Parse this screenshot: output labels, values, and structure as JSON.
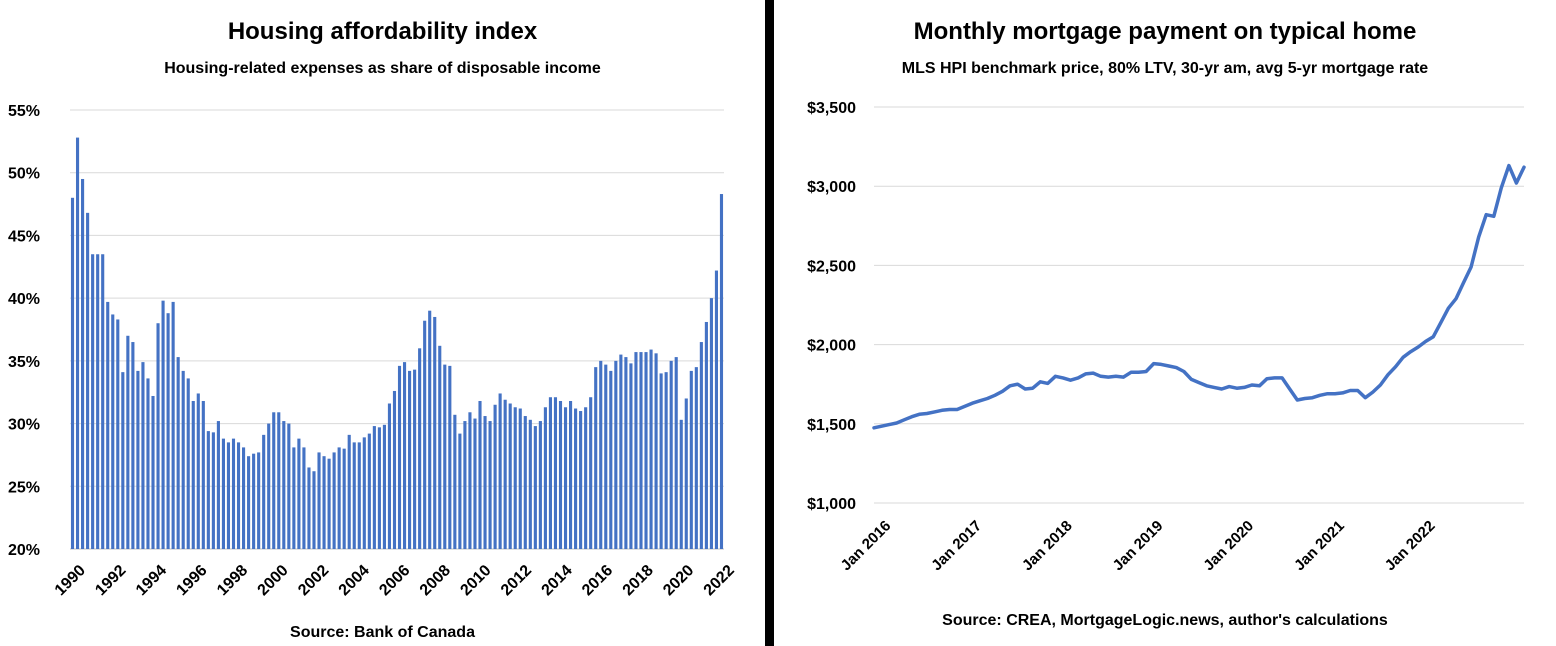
{
  "left_chart": {
    "title": "Housing affordability index",
    "subtitle": "Housing-related expenses as share of disposable income",
    "source": "Source:  Bank of Canada",
    "bar_color": "#4472C4"
  },
  "right_chart": {
    "title": "Monthly mortgage payment on typical home",
    "subtitle": "MLS HPI benchmark price, 80% LTV, 30-yr am,  avg 5-yr mortgage rate",
    "source": "Source: CREA, MortgageLogic.news, author's calculations",
    "line_color": "#4472C4"
  },
  "chart_data": [
    {
      "type": "bar",
      "title": "Housing affordability index",
      "subtitle": "Housing-related expenses as share of disposable income",
      "ylim": [
        20,
        55
      ],
      "y_ticks": [
        "20%",
        "25%",
        "30%",
        "35%",
        "40%",
        "45%",
        "50%",
        "55%"
      ],
      "x_labels": [
        "1990",
        "1992",
        "1994",
        "1996",
        "1998",
        "2000",
        "2002",
        "2004",
        "2006",
        "2008",
        "2010",
        "2012",
        "2014",
        "2016",
        "2018",
        "2020",
        "2022"
      ],
      "x_range": [
        1990,
        2022.25
      ],
      "grid": true,
      "values": [
        48.0,
        52.8,
        49.5,
        46.8,
        43.5,
        43.5,
        43.5,
        39.7,
        38.7,
        38.3,
        34.1,
        37.0,
        36.5,
        34.2,
        34.9,
        33.6,
        32.2,
        38.0,
        39.8,
        38.8,
        39.7,
        35.3,
        34.2,
        33.6,
        31.8,
        32.4,
        31.8,
        29.4,
        29.3,
        30.2,
        28.8,
        28.5,
        28.8,
        28.5,
        28.1,
        27.4,
        27.6,
        27.7,
        29.1,
        30.0,
        30.9,
        30.9,
        30.2,
        30.0,
        28.1,
        28.8,
        28.1,
        26.5,
        26.2,
        27.7,
        27.4,
        27.2,
        27.7,
        28.1,
        28.0,
        29.1,
        28.5,
        28.5,
        28.9,
        29.2,
        29.8,
        29.7,
        29.9,
        31.6,
        32.6,
        34.6,
        34.9,
        34.2,
        34.3,
        36.0,
        38.2,
        39.0,
        38.5,
        36.2,
        34.7,
        34.6,
        30.7,
        29.2,
        30.2,
        30.9,
        30.4,
        31.8,
        30.6,
        30.2,
        31.5,
        32.4,
        31.9,
        31.6,
        31.3,
        31.2,
        30.6,
        30.3,
        29.8,
        30.2,
        31.3,
        32.1,
        32.1,
        31.8,
        31.3,
        31.8,
        31.2,
        31.0,
        31.3,
        32.1,
        34.5,
        35.0,
        34.7,
        34.2,
        35.0,
        35.5,
        35.3,
        34.8,
        35.7,
        35.7,
        35.7,
        35.9,
        35.6,
        34.0,
        34.1,
        35.0,
        35.3,
        30.3,
        32.0,
        34.2,
        34.5,
        36.5,
        38.1,
        40.0,
        42.2,
        48.3
      ],
      "source": "Source:  Bank of Canada"
    },
    {
      "type": "line",
      "title": "Monthly mortgage payment on typical home",
      "subtitle": "MLS HPI benchmark price, 80% LTV, 30-yr am,  avg 5-yr mortgage rate",
      "ylim": [
        1000,
        3500
      ],
      "y_ticks": [
        "$1,000",
        "$1,500",
        "$2,000",
        "$2,500",
        "$3,000",
        "$3,500"
      ],
      "x_labels": [
        "Jan 2016",
        "Jan 2017",
        "Jan 2018",
        "Jan 2019",
        "Jan 2020",
        "Jan 2021",
        "Jan 2022"
      ],
      "x_range": [
        "Jan 2016",
        "Dec 2022"
      ],
      "grid": true,
      "values": [
        1475,
        1485,
        1495,
        1505,
        1525,
        1545,
        1560,
        1565,
        1575,
        1585,
        1590,
        1590,
        1610,
        1630,
        1645,
        1660,
        1680,
        1705,
        1740,
        1750,
        1720,
        1725,
        1765,
        1755,
        1800,
        1790,
        1775,
        1790,
        1815,
        1820,
        1800,
        1795,
        1800,
        1795,
        1825,
        1825,
        1830,
        1880,
        1875,
        1865,
        1855,
        1830,
        1780,
        1760,
        1740,
        1730,
        1720,
        1735,
        1725,
        1730,
        1745,
        1740,
        1785,
        1790,
        1790,
        1720,
        1650,
        1660,
        1665,
        1680,
        1690,
        1690,
        1695,
        1710,
        1710,
        1665,
        1700,
        1745,
        1810,
        1860,
        1920,
        1955,
        1985,
        2020,
        2050,
        2140,
        2230,
        2290,
        2390,
        2490,
        2680,
        2820,
        2810,
        2990,
        3130,
        3020,
        3120
      ]
    }
  ]
}
